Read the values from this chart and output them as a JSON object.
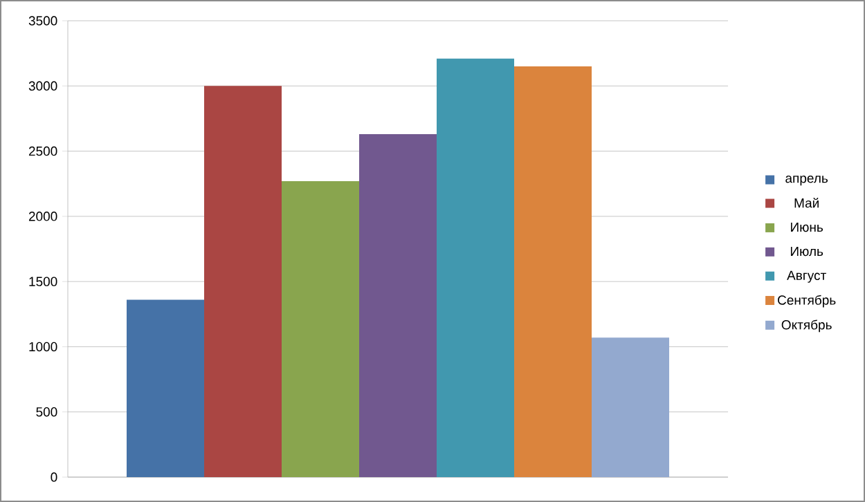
{
  "chart_data": {
    "type": "bar",
    "categories": [
      null
    ],
    "series": [
      {
        "name": "апрель",
        "color": "#4572a7",
        "values": [
          1360
        ]
      },
      {
        "name": "Май",
        "color": "#aa4643",
        "values": [
          3000
        ]
      },
      {
        "name": "Июнь",
        "color": "#89a54e",
        "values": [
          2270
        ]
      },
      {
        "name": "Июль",
        "color": "#71588f",
        "values": [
          2630
        ]
      },
      {
        "name": "Август",
        "color": "#4198af",
        "values": [
          3210
        ]
      },
      {
        "name": "Сентябрь",
        "color": "#db843d",
        "values": [
          3150
        ]
      },
      {
        "name": "Октябрь",
        "color": "#93a9cf",
        "values": [
          1070
        ]
      }
    ],
    "ylim": [
      0,
      3500
    ],
    "yticks": [
      0,
      500,
      1000,
      1500,
      2000,
      2500,
      3000,
      3500
    ],
    "grid": "y",
    "legend": "right"
  }
}
